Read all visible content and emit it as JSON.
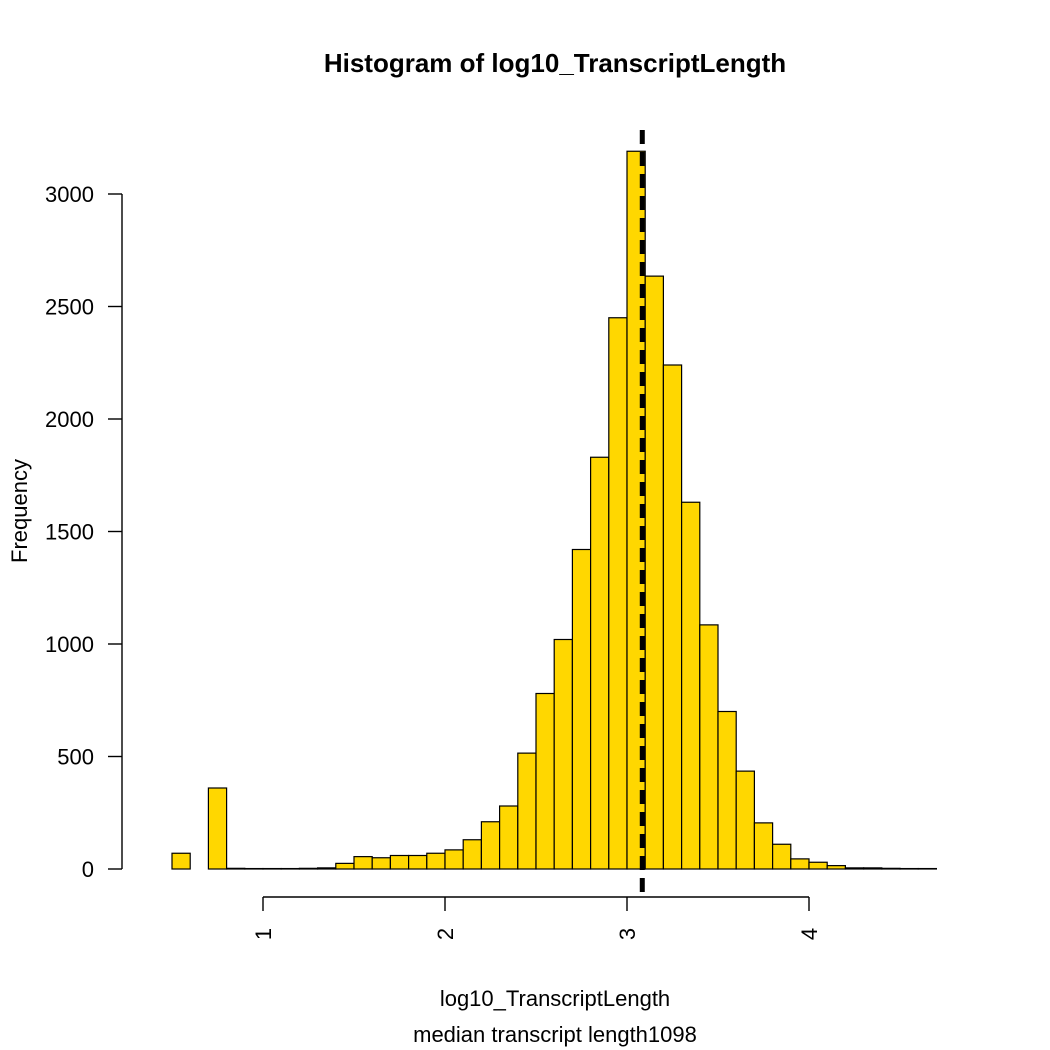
{
  "chart_data": {
    "type": "bar",
    "title": "Histogram of log10_TranscriptLength",
    "xlabel": "log10_TranscriptLength",
    "subtitle": "median transcript length1098",
    "ylabel": "Frequency",
    "bin_width": 0.1,
    "bin_start": 0.5,
    "values": [
      70,
      0,
      360,
      3,
      2,
      2,
      2,
      3,
      5,
      25,
      55,
      50,
      60,
      60,
      70,
      85,
      130,
      210,
      280,
      515,
      780,
      1020,
      1420,
      1830,
      2450,
      3190,
      2635,
      2240,
      1630,
      1085,
      700,
      435,
      205,
      110,
      45,
      30,
      15,
      5,
      5,
      3,
      2,
      2
    ],
    "xlim": [
      0.5,
      4.7
    ],
    "ylim": [
      0,
      3000
    ],
    "x_ticks": [
      "1",
      "2",
      "3",
      "4"
    ],
    "y_ticks": [
      "0",
      "500",
      "1000",
      "1500",
      "2000",
      "2500",
      "3000"
    ],
    "median_line": {
      "x": 3.04,
      "style": "dashed"
    },
    "bar_color": "#FFD700",
    "border_color": "#000000",
    "grid": false
  }
}
